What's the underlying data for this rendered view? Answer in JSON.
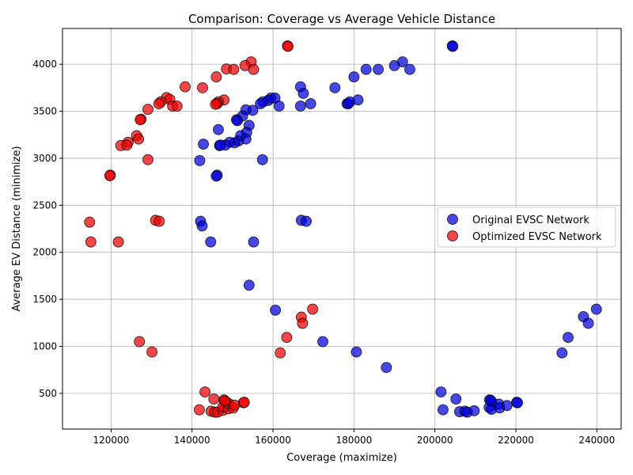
{
  "chart_data": {
    "type": "scatter",
    "title": "Comparison: Coverage vs Average Vehicle Distance",
    "xlabel": "Coverage (maximize)",
    "ylabel": "Average EV Distance (minimize)",
    "xlim": [
      108000,
      246000
    ],
    "ylim": [
      120,
      4380
    ],
    "xticks": [
      120000,
      140000,
      160000,
      180000,
      200000,
      220000,
      240000
    ],
    "yticks": [
      500,
      1000,
      1500,
      2000,
      2500,
      3000,
      3500,
      4000
    ],
    "grid": true,
    "legend_position": "center-right",
    "series": [
      {
        "name": "Original EVSC Network",
        "color": "#0000dd",
        "points": [
          [
            204300,
            4195
          ],
          [
            204400,
            4190
          ],
          [
            192000,
            4025
          ],
          [
            190000,
            3985
          ],
          [
            186000,
            3945
          ],
          [
            183000,
            3945
          ],
          [
            193800,
            3945
          ],
          [
            180000,
            3865
          ],
          [
            166800,
            3760
          ],
          [
            175300,
            3750
          ],
          [
            167500,
            3690
          ],
          [
            159500,
            3640
          ],
          [
            160500,
            3640
          ],
          [
            158800,
            3615
          ],
          [
            157500,
            3600
          ],
          [
            156900,
            3580
          ],
          [
            161500,
            3555
          ],
          [
            166800,
            3555
          ],
          [
            169300,
            3580
          ],
          [
            178300,
            3580
          ],
          [
            178600,
            3580
          ],
          [
            179000,
            3600
          ],
          [
            181000,
            3620
          ],
          [
            155000,
            3510
          ],
          [
            153300,
            3515
          ],
          [
            152500,
            3450
          ],
          [
            154100,
            3350
          ],
          [
            146500,
            3305
          ],
          [
            153500,
            3275
          ],
          [
            152000,
            3240
          ],
          [
            153300,
            3205
          ],
          [
            151500,
            3185
          ],
          [
            150500,
            3165
          ],
          [
            149300,
            3170
          ],
          [
            148200,
            3140
          ],
          [
            146800,
            3135
          ],
          [
            147000,
            3140
          ],
          [
            142800,
            3150
          ],
          [
            151000,
            3410
          ],
          [
            151200,
            3400
          ],
          [
            141900,
            2975
          ],
          [
            157400,
            2985
          ],
          [
            146200,
            2820
          ],
          [
            146000,
            2810
          ],
          [
            142100,
            2330
          ],
          [
            142500,
            2280
          ],
          [
            167000,
            2340
          ],
          [
            168200,
            2330
          ],
          [
            144600,
            2110
          ],
          [
            155200,
            2110
          ],
          [
            154100,
            1650
          ],
          [
            160600,
            1385
          ],
          [
            172300,
            1050
          ],
          [
            180600,
            940
          ],
          [
            188000,
            775
          ],
          [
            239900,
            1395
          ],
          [
            236700,
            1315
          ],
          [
            237900,
            1245
          ],
          [
            232900,
            1095
          ],
          [
            231400,
            930
          ],
          [
            201500,
            515
          ],
          [
            202000,
            325
          ],
          [
            205200,
            440
          ],
          [
            206100,
            305
          ],
          [
            207400,
            310
          ],
          [
            208000,
            300
          ],
          [
            209700,
            315
          ],
          [
            213500,
            430
          ],
          [
            214000,
            410
          ],
          [
            213400,
            350
          ],
          [
            214000,
            330
          ],
          [
            215800,
            385
          ],
          [
            216000,
            345
          ],
          [
            217800,
            370
          ],
          [
            220200,
            405
          ],
          [
            220400,
            400
          ],
          [
            213800,
            425
          ]
        ]
      },
      {
        "name": "Optimized EVSC Network",
        "color": "#ee0000",
        "points": [
          [
            163600,
            4195
          ],
          [
            163700,
            4190
          ],
          [
            154600,
            4025
          ],
          [
            153100,
            3985
          ],
          [
            148500,
            3950
          ],
          [
            150300,
            3945
          ],
          [
            155200,
            3945
          ],
          [
            146000,
            3865
          ],
          [
            138300,
            3760
          ],
          [
            142600,
            3750
          ],
          [
            133700,
            3645
          ],
          [
            134500,
            3625
          ],
          [
            147900,
            3620
          ],
          [
            146500,
            3600
          ],
          [
            146200,
            3580
          ],
          [
            145800,
            3575
          ],
          [
            132300,
            3600
          ],
          [
            131800,
            3580
          ],
          [
            135200,
            3555
          ],
          [
            136300,
            3555
          ],
          [
            129100,
            3520
          ],
          [
            127400,
            3415
          ],
          [
            127200,
            3410
          ],
          [
            126300,
            3240
          ],
          [
            126800,
            3205
          ],
          [
            124200,
            3170
          ],
          [
            122400,
            3135
          ],
          [
            123900,
            3140
          ],
          [
            129100,
            2985
          ],
          [
            119800,
            2820
          ],
          [
            119700,
            2815
          ],
          [
            114700,
            2320
          ],
          [
            131000,
            2340
          ],
          [
            131900,
            2330
          ],
          [
            115000,
            2110
          ],
          [
            121800,
            2110
          ],
          [
            169800,
            1395
          ],
          [
            167000,
            1310
          ],
          [
            167300,
            1245
          ],
          [
            163400,
            1095
          ],
          [
            161800,
            930
          ],
          [
            127000,
            1050
          ],
          [
            130100,
            940
          ],
          [
            143200,
            515
          ],
          [
            141800,
            325
          ],
          [
            144700,
            310
          ],
          [
            145400,
            440
          ],
          [
            145600,
            300
          ],
          [
            146300,
            300
          ],
          [
            147600,
            320
          ],
          [
            147900,
            430
          ],
          [
            148400,
            410
          ],
          [
            147600,
            355
          ],
          [
            149000,
            335
          ],
          [
            149100,
            390
          ],
          [
            150200,
            345
          ],
          [
            150500,
            375
          ],
          [
            152700,
            400
          ],
          [
            152900,
            405
          ],
          [
            148100,
            420
          ]
        ]
      }
    ]
  }
}
